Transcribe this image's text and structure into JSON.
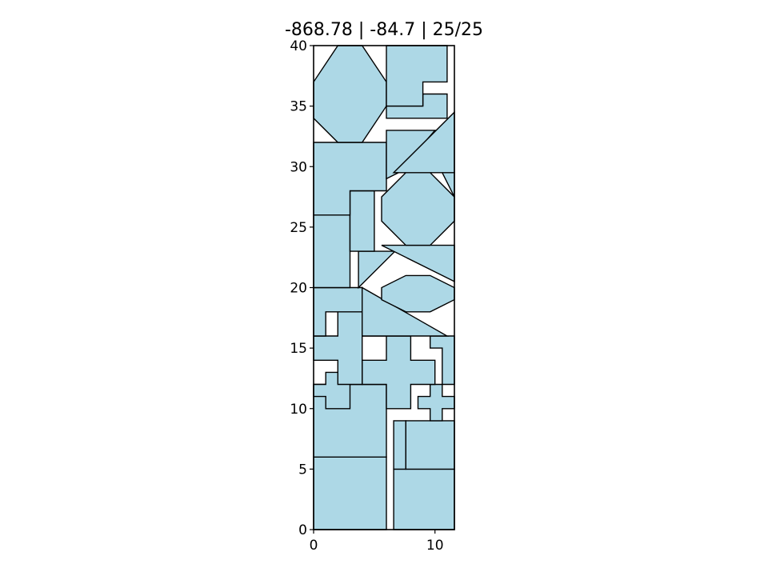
{
  "chart_data": {
    "type": "other",
    "title": "-868.78 | -84.7 | 25/25",
    "xlabel": "",
    "ylabel": "",
    "xlim": [
      0,
      11.6
    ],
    "ylim": [
      0,
      40
    ],
    "xticks": [
      0,
      10
    ],
    "yticks": [
      0,
      5,
      10,
      15,
      20,
      25,
      30,
      35,
      40
    ],
    "grid": false,
    "fill_color": "#add8e6",
    "edge_color": "#000000",
    "pieces": [
      {
        "id": 1,
        "shape": "rectangle",
        "points": [
          [
            0,
            0
          ],
          [
            6,
            0
          ],
          [
            6,
            6
          ],
          [
            0,
            6
          ]
        ]
      },
      {
        "id": 2,
        "shape": "rectangle",
        "points": [
          [
            6.6,
            0
          ],
          [
            11.6,
            0
          ],
          [
            11.6,
            5
          ],
          [
            6.6,
            5
          ]
        ]
      },
      {
        "id": 3,
        "shape": "rectangle",
        "points": [
          [
            0,
            6
          ],
          [
            6,
            6
          ],
          [
            6,
            12
          ],
          [
            0,
            12
          ]
        ]
      },
      {
        "id": 4,
        "shape": "rectangle",
        "points": [
          [
            6.6,
            5
          ],
          [
            7.6,
            5
          ],
          [
            7.6,
            9
          ],
          [
            6.6,
            9
          ]
        ]
      },
      {
        "id": 5,
        "shape": "rectangle",
        "points": [
          [
            7.6,
            5
          ],
          [
            11.6,
            5
          ],
          [
            11.6,
            9
          ],
          [
            7.6,
            9
          ]
        ]
      },
      {
        "id": 6,
        "shape": "cross",
        "points": [
          [
            1,
            10
          ],
          [
            3,
            10
          ],
          [
            3,
            11
          ],
          [
            3,
            12
          ],
          [
            3,
            13
          ],
          [
            1,
            13
          ],
          [
            1,
            12
          ],
          [
            0,
            12
          ],
          [
            0,
            11
          ],
          [
            1,
            11
          ]
        ]
      },
      {
        "id": 7,
        "shape": "cross",
        "points": [
          [
            9.6,
            9
          ],
          [
            10.6,
            9
          ],
          [
            10.6,
            10
          ],
          [
            11.6,
            10
          ],
          [
            11.6,
            11
          ],
          [
            10.6,
            11
          ],
          [
            10.6,
            12
          ],
          [
            9.6,
            12
          ],
          [
            9.6,
            11
          ],
          [
            8.6,
            11
          ],
          [
            8.6,
            10
          ],
          [
            9.6,
            10
          ]
        ]
      },
      {
        "id": 8,
        "shape": "cross",
        "points": [
          [
            6,
            10
          ],
          [
            8,
            10
          ],
          [
            8,
            12
          ],
          [
            10,
            12
          ],
          [
            10,
            14
          ],
          [
            8,
            14
          ],
          [
            8,
            16
          ],
          [
            6,
            16
          ],
          [
            6,
            14
          ],
          [
            4,
            14
          ],
          [
            4,
            12
          ],
          [
            6,
            12
          ]
        ]
      },
      {
        "id": 9,
        "shape": "cross",
        "points": [
          [
            2,
            12
          ],
          [
            4,
            12
          ],
          [
            4,
            16
          ],
          [
            6,
            16
          ],
          [
            6,
            18
          ],
          [
            4,
            18
          ],
          [
            4,
            18
          ],
          [
            2,
            18
          ],
          [
            2,
            16
          ],
          [
            0,
            16
          ],
          [
            0,
            14
          ],
          [
            2,
            14
          ]
        ]
      },
      {
        "id": 10,
        "shape": "polygon",
        "points": [
          [
            10.6,
            12
          ],
          [
            11.6,
            12
          ],
          [
            11.6,
            16
          ],
          [
            9.6,
            16
          ],
          [
            9.6,
            15
          ],
          [
            10.6,
            15
          ]
        ]
      },
      {
        "id": 11,
        "shape": "polygon",
        "points": [
          [
            0,
            16
          ],
          [
            1,
            16
          ],
          [
            1,
            18
          ],
          [
            2,
            18
          ],
          [
            2,
            18
          ],
          [
            4,
            18
          ],
          [
            4,
            20
          ],
          [
            0,
            20
          ]
        ]
      },
      {
        "id": 12,
        "shape": "triangle",
        "points": [
          [
            4,
            16
          ],
          [
            11,
            16
          ],
          [
            4,
            20
          ]
        ]
      },
      {
        "id": 13,
        "shape": "octagon",
        "points": [
          [
            5.6,
            19
          ],
          [
            7.6,
            18
          ],
          [
            9.6,
            18
          ],
          [
            11.6,
            19
          ],
          [
            11.6,
            20
          ],
          [
            9.6,
            21
          ],
          [
            7.6,
            21
          ],
          [
            5.6,
            20
          ]
        ]
      },
      {
        "id": 14,
        "shape": "triangle",
        "points": [
          [
            3.7,
            20
          ],
          [
            6.7,
            23
          ],
          [
            3.7,
            23
          ]
        ]
      },
      {
        "id": 15,
        "shape": "triangle",
        "points": [
          [
            5.6,
            23.5
          ],
          [
            11.6,
            23.5
          ],
          [
            11.6,
            20.5
          ]
        ]
      },
      {
        "id": 16,
        "shape": "rectangle",
        "points": [
          [
            0,
            20
          ],
          [
            3,
            20
          ],
          [
            3,
            26
          ],
          [
            0,
            26
          ]
        ]
      },
      {
        "id": 17,
        "shape": "rectangle",
        "points": [
          [
            3,
            23
          ],
          [
            5,
            23
          ],
          [
            5,
            28
          ],
          [
            3,
            28
          ]
        ]
      },
      {
        "id": 18,
        "shape": "octagon",
        "points": [
          [
            7.6,
            23.5
          ],
          [
            9.6,
            23.5
          ],
          [
            11.6,
            25.5
          ],
          [
            11.6,
            27.5
          ],
          [
            9.6,
            29.5
          ],
          [
            7.6,
            29.5
          ],
          [
            5.6,
            27.5
          ],
          [
            5.6,
            25.5
          ]
        ]
      },
      {
        "id": 19,
        "shape": "polygon",
        "points": [
          [
            0,
            26
          ],
          [
            3,
            26
          ],
          [
            3,
            28
          ],
          [
            6,
            28
          ],
          [
            6,
            32
          ],
          [
            0,
            32
          ]
        ]
      },
      {
        "id": 20,
        "shape": "polygon",
        "points": [
          [
            6,
            29
          ],
          [
            6.6,
            29.5
          ],
          [
            10.6,
            29.5
          ],
          [
            11.6,
            27.5
          ],
          [
            11.6,
            29.5
          ],
          [
            6.6,
            29.5
          ]
        ]
      },
      {
        "id": 21,
        "shape": "polygon",
        "points": [
          [
            6,
            29
          ],
          [
            6,
            33
          ],
          [
            10,
            33
          ],
          [
            7,
            29.5
          ]
        ]
      },
      {
        "id": 22,
        "shape": "triangle",
        "points": [
          [
            6.6,
            29.5
          ],
          [
            11.6,
            29.5
          ],
          [
            11.6,
            34.5
          ]
        ]
      },
      {
        "id": 23,
        "shape": "octagon",
        "points": [
          [
            2,
            32
          ],
          [
            4,
            32
          ],
          [
            6,
            35
          ],
          [
            6,
            37
          ],
          [
            4,
            40
          ],
          [
            2,
            40
          ],
          [
            0,
            37
          ],
          [
            0,
            34
          ]
        ]
      },
      {
        "id": 24,
        "shape": "polygon",
        "points": [
          [
            6,
            34
          ],
          [
            11,
            34
          ],
          [
            11,
            36
          ],
          [
            9,
            36
          ],
          [
            9,
            35
          ],
          [
            6,
            35
          ]
        ]
      },
      {
        "id": 25,
        "shape": "polygon",
        "points": [
          [
            6,
            35
          ],
          [
            9,
            35
          ],
          [
            9,
            37
          ],
          [
            11,
            37
          ],
          [
            11,
            40
          ],
          [
            6,
            40
          ]
        ]
      }
    ]
  }
}
